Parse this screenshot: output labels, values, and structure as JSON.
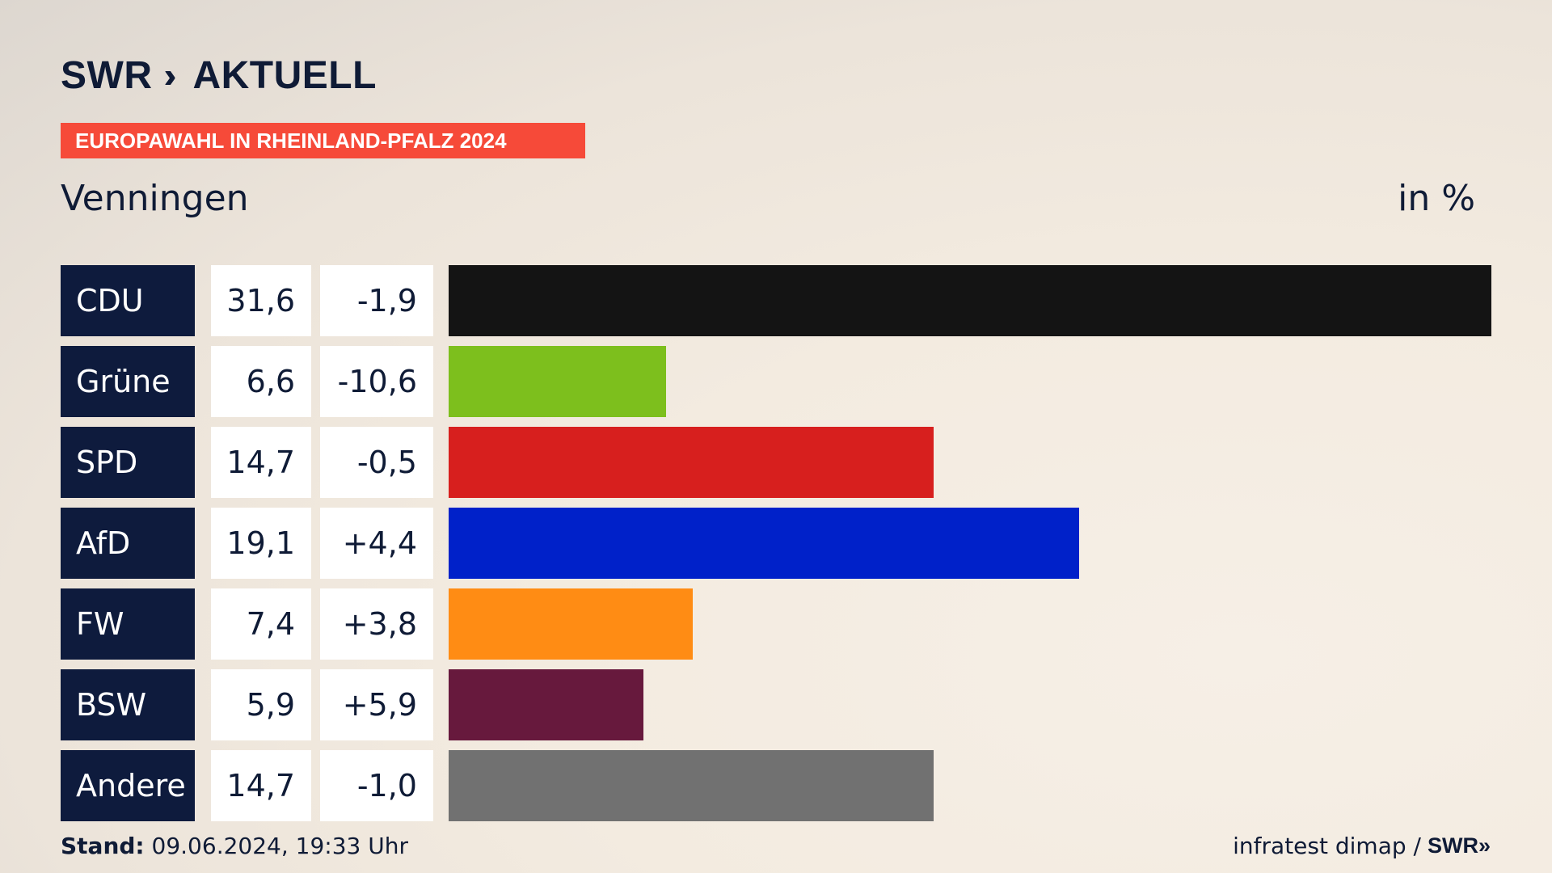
{
  "header": {
    "logo_swr": "SWR",
    "logo_chevrons": "›››",
    "logo_aktuell": "AKTUELL",
    "banner": "EUROPAWAHL IN RHEINLAND-PFALZ 2024",
    "location": "Venningen",
    "unit": "in %"
  },
  "footer": {
    "stand_label": "Stand:",
    "stand_value": "09.06.2024, 19:33 Uhr",
    "source": "infratest dimap /",
    "source_brand": "SWR",
    "source_chevrons": "»"
  },
  "chart_data": {
    "type": "bar",
    "categories": [
      "CDU",
      "Grüne",
      "SPD",
      "AfD",
      "FW",
      "BSW",
      "Andere"
    ],
    "values": [
      31.6,
      6.6,
      14.7,
      19.1,
      7.4,
      5.9,
      14.7
    ],
    "values_label": [
      "31,6",
      "6,6",
      "14,7",
      "19,1",
      "7,4",
      "5,9",
      "14,7"
    ],
    "diff_label": [
      "-1,9",
      "-10,6",
      "-0,5",
      "+4,4",
      "+3,8",
      "+5,9",
      "-1,0"
    ],
    "colors": [
      "#141414",
      "#7dbf1d",
      "#d71f1e",
      "#0021c9",
      "#ff8c14",
      "#67193d",
      "#717171"
    ],
    "orientation": "horizontal",
    "xlim": [
      0,
      31.6
    ]
  }
}
